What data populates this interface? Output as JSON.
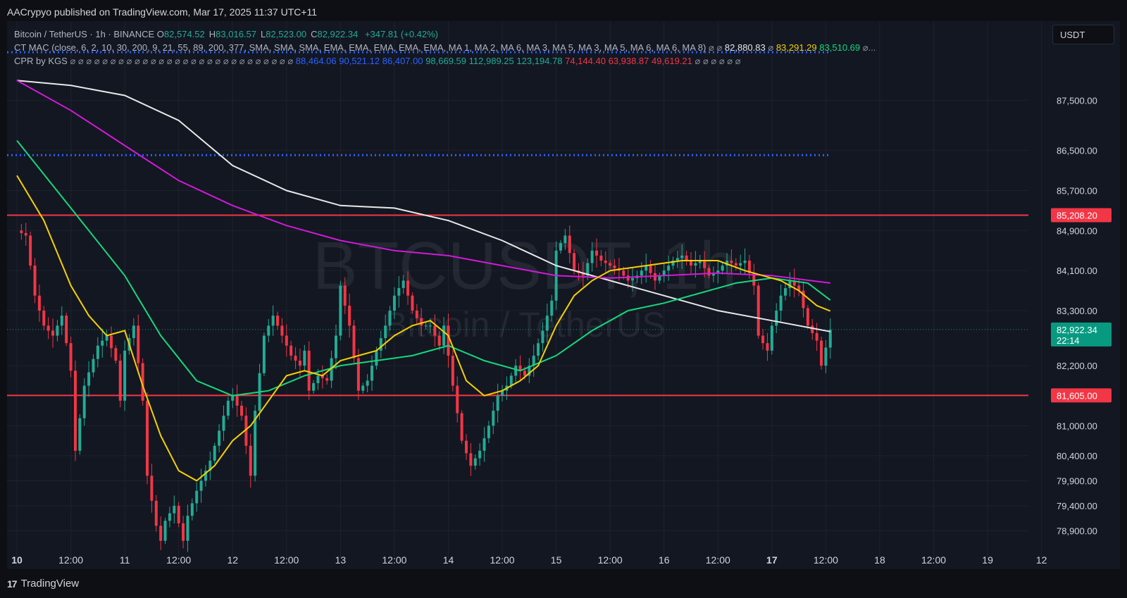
{
  "header": {
    "published": "AACrypyo published on TradingView.com, Mar 17, 2025 11:37 UTC+11"
  },
  "legend": {
    "title": "Bitcoin / TetherUS · 1h · BINANCE",
    "ohlc": [
      {
        "key": "O",
        "value": "82,574.52"
      },
      {
        "key": "H",
        "value": "83,016.57"
      },
      {
        "key": "L",
        "value": "82,523.00"
      },
      {
        "key": "C",
        "value": "82,922.34"
      }
    ],
    "change": "+347.81 (+0.42%)",
    "ma_indicator": "CT MAC (close, 6, 2, 10, 30, 200, 9, 21, 55, 89, 200, 377, SMA, SMA, SMA, EMA, EMA, EMA, EMA, EMA, MA 1, MA 2, MA 6, MA 3, MA 5, MA 3, MA 5, MA 6, MA 6, MA 8)",
    "ma_prefix_symbols": "⌀ ⌀",
    "ma_values": [
      "82,880.83",
      "83,291.29",
      "83,510.69"
    ],
    "ma_symbol": "⌀",
    "ma_suffix": "⌀...",
    "cpr_indicator": "CPR by KGS",
    "cpr_prefix_symbols": "⌀ ⌀ ⌀ ⌀ ⌀ ⌀ ⌀ ⌀ ⌀ ⌀ ⌀ ⌀ ⌀ ⌀ ⌀ ⌀ ⌀ ⌀ ⌀ ⌀ ⌀ ⌀ ⌀ ⌀ ⌀ ⌀ ⌀ ⌀",
    "cpr_blue": [
      "88,464.06",
      "90,521.12",
      "86,407.00"
    ],
    "cpr_green": [
      "98,669.59",
      "112,989.25",
      "123,194.78"
    ],
    "cpr_red": [
      "74,144.40",
      "63,938.87",
      "49,619.21"
    ],
    "cpr_suffix_symbols": "⌀ ⌀ ⌀ ⌀ ⌀ ⌀"
  },
  "toolbar": {
    "currency": "USDT"
  },
  "watermark": {
    "symbol": "BTCUSDT, 1h",
    "name": "Bitcoin / TetherUS"
  },
  "footer": {
    "logo_mark": "17",
    "logo_text": "TradingView"
  },
  "colors": {
    "background": "#131722",
    "up": "#22ab94",
    "down": "#f23645",
    "ma_white": "#e8e8e8",
    "ma_magenta": "#d11ad7",
    "ma_green": "#16d77a",
    "ma_yellow": "#f5d000",
    "cpr_blue": "#2962ff",
    "level_red": "#f23645"
  },
  "chart_data": {
    "type": "candlestick",
    "symbol": "BTCUSDT",
    "interval": "1h",
    "ylim": [
      78500,
      88100
    ],
    "y_ticks": [
      "87,500.00",
      "86,500.00",
      "85,700.00",
      "84,900.00",
      "84,100.00",
      "83,300.00",
      "82,200.00",
      "81,000.00",
      "80,400.00",
      "79,900.00",
      "79,400.00",
      "78,900.00"
    ],
    "y_tick_values": [
      87500,
      86500,
      85700,
      84900,
      84100,
      83300,
      82200,
      81000,
      80400,
      79900,
      79400,
      78900
    ],
    "x_labels": [
      "10",
      "12:00",
      "11",
      "12:00",
      "12",
      "12:00",
      "13",
      "12:00",
      "14",
      "12:00",
      "15",
      "12:00",
      "16",
      "12:00",
      "17",
      "12:00",
      "18",
      "12:00",
      "19",
      "12"
    ],
    "x_bold": [
      true,
      false,
      false,
      false,
      false,
      false,
      false,
      false,
      false,
      false,
      false,
      false,
      false,
      false,
      true,
      false,
      false,
      false,
      false,
      false
    ],
    "x_hours_from_start": [
      0,
      12,
      24,
      36,
      48,
      60,
      72,
      84,
      96,
      108,
      120,
      132,
      144,
      156,
      168,
      180,
      192,
      204,
      216,
      228
    ],
    "last_candle_hour": 181,
    "price_labels": [
      {
        "label": "85,208.20",
        "sublabel": "",
        "value": 85208.2,
        "color": "#f23645"
      },
      {
        "label": "82,922.34",
        "sublabel": "22:14",
        "value": 82922.34,
        "color": "#089981"
      },
      {
        "label": "81,605.00",
        "sublabel": "",
        "value": 81605,
        "color": "#f23645"
      }
    ],
    "horizontal_levels": [
      {
        "name": "resistance",
        "value": 85208.2,
        "style": "solid",
        "color": "#f23645"
      },
      {
        "name": "support",
        "value": 81605,
        "style": "solid",
        "color": "#f23645"
      },
      {
        "name": "cpr-top",
        "value": 88464.06,
        "style": "dotted",
        "color": "#2962ff"
      },
      {
        "name": "cpr-pivot",
        "value": 86407,
        "style": "dotted",
        "color": "#2962ff"
      }
    ],
    "close_path": [
      [
        0,
        84900
      ],
      [
        2,
        84800
      ],
      [
        4,
        83600
      ],
      [
        6,
        83000
      ],
      [
        8,
        82800
      ],
      [
        10,
        83200
      ],
      [
        12,
        82100
      ],
      [
        13,
        80500
      ],
      [
        15,
        81800
      ],
      [
        18,
        82600
      ],
      [
        20,
        82800
      ],
      [
        22,
        82300
      ],
      [
        23,
        81500
      ],
      [
        24,
        82500
      ],
      [
        26,
        83000
      ],
      [
        28,
        81500
      ],
      [
        29,
        80000
      ],
      [
        31,
        79000
      ],
      [
        32,
        78700
      ],
      [
        33,
        79100
      ],
      [
        35,
        79400
      ],
      [
        37,
        78700
      ],
      [
        38,
        79200
      ],
      [
        40,
        79700
      ],
      [
        43,
        80300
      ],
      [
        45,
        80900
      ],
      [
        47,
        81500
      ],
      [
        48,
        81600
      ],
      [
        50,
        81200
      ],
      [
        52,
        80000
      ],
      [
        53,
        81300
      ],
      [
        55,
        82800
      ],
      [
        57,
        83200
      ],
      [
        59,
        82800
      ],
      [
        61,
        82400
      ],
      [
        63,
        82200
      ],
      [
        64,
        82500
      ],
      [
        65,
        81700
      ],
      [
        67,
        82000
      ],
      [
        69,
        81900
      ],
      [
        71,
        82800
      ],
      [
        72,
        83800
      ],
      [
        74,
        83000
      ],
      [
        76,
        81700
      ],
      [
        78,
        81900
      ],
      [
        80,
        82500
      ],
      [
        82,
        83000
      ],
      [
        84,
        83600
      ],
      [
        86,
        83900
      ],
      [
        88,
        83300
      ],
      [
        90,
        83000
      ],
      [
        92,
        83000
      ],
      [
        94,
        82600
      ],
      [
        95,
        83000
      ],
      [
        97,
        81800
      ],
      [
        99,
        80700
      ],
      [
        101,
        80200
      ],
      [
        103,
        80500
      ],
      [
        105,
        81000
      ],
      [
        107,
        81600
      ],
      [
        109,
        81800
      ],
      [
        111,
        82200
      ],
      [
        113,
        82000
      ],
      [
        115,
        82400
      ],
      [
        117,
        82900
      ],
      [
        119,
        83500
      ],
      [
        120,
        84500
      ],
      [
        122,
        84800
      ],
      [
        124,
        84100
      ],
      [
        126,
        84000
      ],
      [
        128,
        84500
      ],
      [
        130,
        84300
      ],
      [
        132,
        84200
      ],
      [
        134,
        84100
      ],
      [
        136,
        83900
      ],
      [
        138,
        84000
      ],
      [
        140,
        84200
      ],
      [
        142,
        83900
      ],
      [
        144,
        84100
      ],
      [
        146,
        84300
      ],
      [
        148,
        84400
      ],
      [
        150,
        84200
      ],
      [
        152,
        84300
      ],
      [
        154,
        84000
      ],
      [
        156,
        84100
      ],
      [
        158,
        84300
      ],
      [
        160,
        84200
      ],
      [
        162,
        84300
      ],
      [
        164,
        83800
      ],
      [
        165,
        82800
      ],
      [
        167,
        82500
      ],
      [
        168,
        83000
      ],
      [
        170,
        83600
      ],
      [
        172,
        83900
      ],
      [
        174,
        83700
      ],
      [
        176,
        83000
      ],
      [
        178,
        82700
      ],
      [
        179,
        82200
      ],
      [
        181,
        82922
      ]
    ],
    "moving_averages": [
      {
        "color": "#e8e8e8",
        "points": [
          [
            0,
            87900
          ],
          [
            12,
            87800
          ],
          [
            24,
            87600
          ],
          [
            36,
            87100
          ],
          [
            48,
            86200
          ],
          [
            60,
            85700
          ],
          [
            72,
            85400
          ],
          [
            84,
            85350
          ],
          [
            96,
            85100
          ],
          [
            108,
            84700
          ],
          [
            120,
            84200
          ],
          [
            132,
            83900
          ],
          [
            144,
            83600
          ],
          [
            156,
            83300
          ],
          [
            168,
            83100
          ],
          [
            181,
            82880
          ]
        ]
      },
      {
        "color": "#d11ad7",
        "points": [
          [
            0,
            87900
          ],
          [
            12,
            87300
          ],
          [
            24,
            86600
          ],
          [
            36,
            85900
          ],
          [
            48,
            85400
          ],
          [
            60,
            85000
          ],
          [
            72,
            84700
          ],
          [
            84,
            84500
          ],
          [
            96,
            84400
          ],
          [
            108,
            84200
          ],
          [
            120,
            84000
          ],
          [
            132,
            83950
          ],
          [
            144,
            84000
          ],
          [
            156,
            84050
          ],
          [
            168,
            84000
          ],
          [
            181,
            83850
          ]
        ]
      },
      {
        "color": "#16d77a",
        "points": [
          [
            0,
            86700
          ],
          [
            8,
            85800
          ],
          [
            16,
            84900
          ],
          [
            24,
            84000
          ],
          [
            32,
            82800
          ],
          [
            40,
            81900
          ],
          [
            48,
            81600
          ],
          [
            56,
            81700
          ],
          [
            64,
            82000
          ],
          [
            72,
            82200
          ],
          [
            80,
            82300
          ],
          [
            88,
            82400
          ],
          [
            96,
            82600
          ],
          [
            104,
            82300
          ],
          [
            112,
            82100
          ],
          [
            120,
            82400
          ],
          [
            128,
            82900
          ],
          [
            136,
            83300
          ],
          [
            144,
            83450
          ],
          [
            152,
            83650
          ],
          [
            160,
            83850
          ],
          [
            168,
            83950
          ],
          [
            176,
            83850
          ],
          [
            181,
            83510
          ]
        ]
      },
      {
        "color": "#f5d000",
        "points": [
          [
            0,
            86000
          ],
          [
            6,
            85100
          ],
          [
            12,
            83800
          ],
          [
            16,
            83200
          ],
          [
            20,
            82800
          ],
          [
            24,
            82900
          ],
          [
            28,
            81800
          ],
          [
            32,
            80800
          ],
          [
            36,
            80100
          ],
          [
            40,
            79900
          ],
          [
            44,
            80200
          ],
          [
            48,
            80700
          ],
          [
            52,
            81000
          ],
          [
            56,
            81500
          ],
          [
            60,
            82000
          ],
          [
            64,
            82100
          ],
          [
            68,
            82000
          ],
          [
            72,
            82300
          ],
          [
            76,
            82400
          ],
          [
            80,
            82500
          ],
          [
            84,
            82800
          ],
          [
            88,
            83000
          ],
          [
            92,
            83100
          ],
          [
            96,
            82800
          ],
          [
            100,
            81900
          ],
          [
            104,
            81600
          ],
          [
            108,
            81700
          ],
          [
            112,
            81900
          ],
          [
            116,
            82200
          ],
          [
            120,
            83000
          ],
          [
            124,
            83600
          ],
          [
            128,
            83900
          ],
          [
            132,
            84100
          ],
          [
            140,
            84200
          ],
          [
            148,
            84300
          ],
          [
            156,
            84300
          ],
          [
            162,
            84100
          ],
          [
            166,
            84000
          ],
          [
            170,
            83900
          ],
          [
            174,
            83700
          ],
          [
            178,
            83400
          ],
          [
            181,
            83291
          ]
        ]
      }
    ]
  }
}
